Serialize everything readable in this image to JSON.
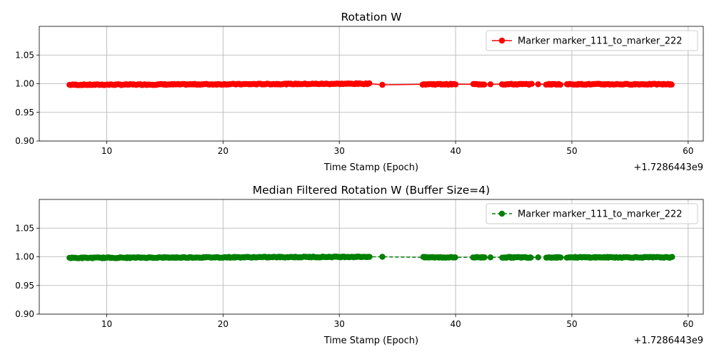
{
  "chart_data": [
    {
      "type": "line",
      "title": "Rotation W",
      "xlabel": "Time Stamp (Epoch)",
      "ylabel": "",
      "x_offset_label": "+1.7286443e9",
      "xlim": [
        4.2,
        61.3
      ],
      "ylim": [
        0.9,
        1.1
      ],
      "x_ticks": [
        10,
        20,
        30,
        40,
        50,
        60
      ],
      "y_ticks": [
        "0.90",
        "0.95",
        "1.00",
        "1.05"
      ],
      "grid": true,
      "legend_position": "top-right",
      "series": [
        {
          "name": "Marker marker_111_to_marker_222",
          "color": "#ff0000",
          "line_style": "solid",
          "marker": "circle",
          "segments": [
            {
              "x_start": 6.8,
              "x_end": 32.6,
              "y_start": 0.998,
              "y_end": 1.0
            },
            {
              "x_start": 37.2,
              "x_end": 40.0,
              "y_start": 0.999,
              "y_end": 0.999
            },
            {
              "x_start": 41.5,
              "x_end": 42.5,
              "y_start": 0.999,
              "y_end": 0.999
            },
            {
              "x_start": 44.0,
              "x_end": 46.5,
              "y_start": 0.999,
              "y_end": 0.999
            },
            {
              "x_start": 47.8,
              "x_end": 49.0,
              "y_start": 0.999,
              "y_end": 0.999
            },
            {
              "x_start": 49.6,
              "x_end": 52.8,
              "y_start": 0.999,
              "y_end": 0.999
            },
            {
              "x_start": 52.8,
              "x_end": 58.6,
              "y_start": 0.999,
              "y_end": 0.999
            }
          ],
          "isolated_points": [
            {
              "x": 33.7,
              "y": 0.998
            },
            {
              "x": 43.0,
              "y": 0.999
            },
            {
              "x": 47.1,
              "y": 0.999
            }
          ]
        }
      ]
    },
    {
      "type": "line",
      "title": "Median Filtered Rotation W (Buffer Size=4)",
      "xlabel": "Time Stamp (Epoch)",
      "ylabel": "",
      "x_offset_label": "+1.7286443e9",
      "xlim": [
        4.2,
        61.3
      ],
      "ylim": [
        0.9,
        1.1
      ],
      "x_ticks": [
        10,
        20,
        30,
        40,
        50,
        60
      ],
      "y_ticks": [
        "0.90",
        "0.95",
        "1.00",
        "1.05"
      ],
      "grid": true,
      "legend_position": "top-right",
      "series": [
        {
          "name": "Marker marker_111_to_marker_222",
          "color": "#008000",
          "line_style": "dashed",
          "marker": "circle",
          "segments": [
            {
              "x_start": 6.8,
              "x_end": 32.6,
              "y_start": 0.998,
              "y_end": 1.0
            },
            {
              "x_start": 37.2,
              "x_end": 40.0,
              "y_start": 0.999,
              "y_end": 0.999
            },
            {
              "x_start": 41.5,
              "x_end": 42.5,
              "y_start": 0.999,
              "y_end": 0.999
            },
            {
              "x_start": 44.0,
              "x_end": 46.5,
              "y_start": 0.999,
              "y_end": 0.999
            },
            {
              "x_start": 47.8,
              "x_end": 49.0,
              "y_start": 0.999,
              "y_end": 0.999
            },
            {
              "x_start": 49.6,
              "x_end": 52.8,
              "y_start": 0.999,
              "y_end": 0.999
            },
            {
              "x_start": 52.8,
              "x_end": 58.6,
              "y_start": 0.999,
              "y_end": 0.999
            }
          ],
          "isolated_points": [
            {
              "x": 33.7,
              "y": 1.0
            },
            {
              "x": 43.0,
              "y": 0.999
            },
            {
              "x": 47.1,
              "y": 0.999
            }
          ]
        }
      ]
    }
  ]
}
